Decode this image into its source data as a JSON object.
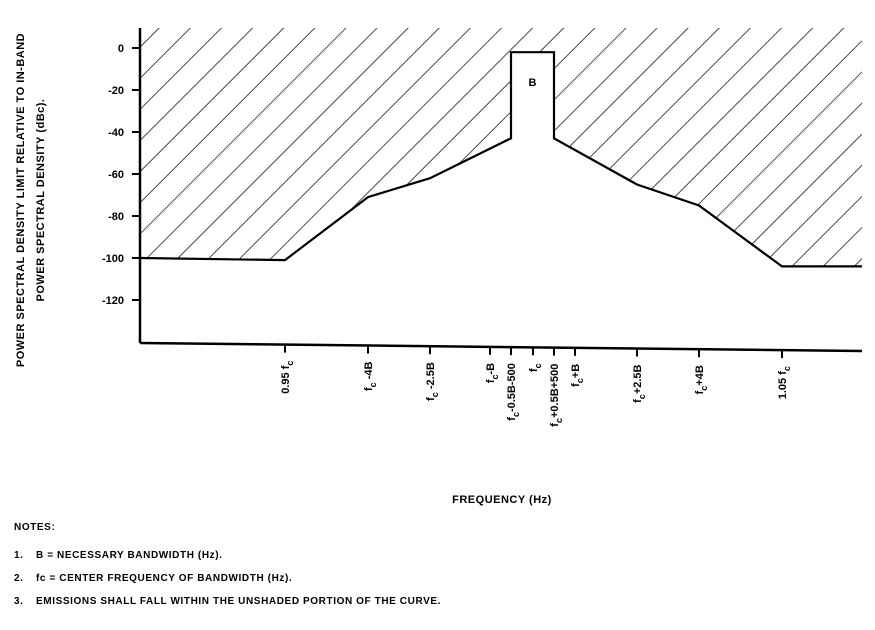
{
  "chart_data": {
    "type": "line",
    "ylabel_line1": "POWER SPECTRAL DENSITY LIMIT RELATIVE TO IN-BAND",
    "ylabel_line2": "POWER SPECTRAL DENSITY (dBc).",
    "xlabel": "FREQUENCY (Hz)",
    "y_ticks": [
      0,
      -20,
      -40,
      -60,
      -80,
      -100,
      -120
    ],
    "y_tick_labels": [
      "0",
      "-20",
      "-40",
      "-60",
      "-80",
      "-100",
      "-120"
    ],
    "ylim": [
      -140,
      10
    ],
    "x_tick_labels": [
      {
        "label": "0.95 fc",
        "text": "0.95 f",
        "sub": "c"
      },
      {
        "label": "fc -4B",
        "text": "f",
        "sub": "c",
        "rest": " -4B"
      },
      {
        "label": "fc -2.5B",
        "text": "f",
        "sub": "c",
        "rest": " -2.5B"
      },
      {
        "label": "fc -B",
        "text": "f",
        "sub": "c",
        "rest": "-B"
      },
      {
        "label": "fc-0.5B-500",
        "text": "f",
        "sub": "c",
        "rest": "-0.5B-500"
      },
      {
        "label": "fc",
        "text": "f",
        "sub": "c"
      },
      {
        "label": "fc+0.5B+500",
        "text": "f",
        "sub": "c",
        "rest": "+0.5B+500"
      },
      {
        "label": "fc+B",
        "text": "f",
        "sub": "c",
        "rest": "+B"
      },
      {
        "label": "fc+2.5B",
        "text": "f",
        "sub": "c",
        "rest": "+2.5B"
      },
      {
        "label": "fc+4B",
        "text": "f",
        "sub": "c",
        "rest": "+4B"
      },
      {
        "label": "1.05 fc",
        "text": "1.05 f",
        "sub": "c"
      }
    ],
    "series": [
      {
        "values": [
          {
            "x": "left edge",
            "y": -100
          },
          {
            "x": "0.95 fc",
            "y": -101
          },
          {
            "x": "fc -4B",
            "y": -71
          },
          {
            "x": "fc -2.5B",
            "y": -62
          },
          {
            "x": "fc-0.5B-500",
            "y": -43
          },
          {
            "x": "fc-0.5B-500",
            "y": -2
          },
          {
            "x": "fc+0.5B+500",
            "y": -2
          },
          {
            "x": "fc+0.5B+500",
            "y": -43
          },
          {
            "x": "fc+2.5B",
            "y": -65
          },
          {
            "x": "fc+4B",
            "y": -75
          },
          {
            "x": "1.05 fc",
            "y": -104
          },
          {
            "x": "right edge",
            "y": -104
          }
        ]
      }
    ],
    "annotation_in_band": "B",
    "shaded_region": "above limit curve (hatched)",
    "grid": false
  },
  "notes": {
    "title": "NOTES:",
    "items": [
      {
        "num": "1.",
        "text": "B = NECESSARY BANDWIDTH (Hz)."
      },
      {
        "num": "2.",
        "text": "fc = CENTER FREQUENCY OF BANDWIDTH (Hz)."
      },
      {
        "num": "3.",
        "text": "EMISSIONS SHALL FALL WITHIN THE UNSHADED PORTION OF THE CURVE."
      }
    ]
  }
}
